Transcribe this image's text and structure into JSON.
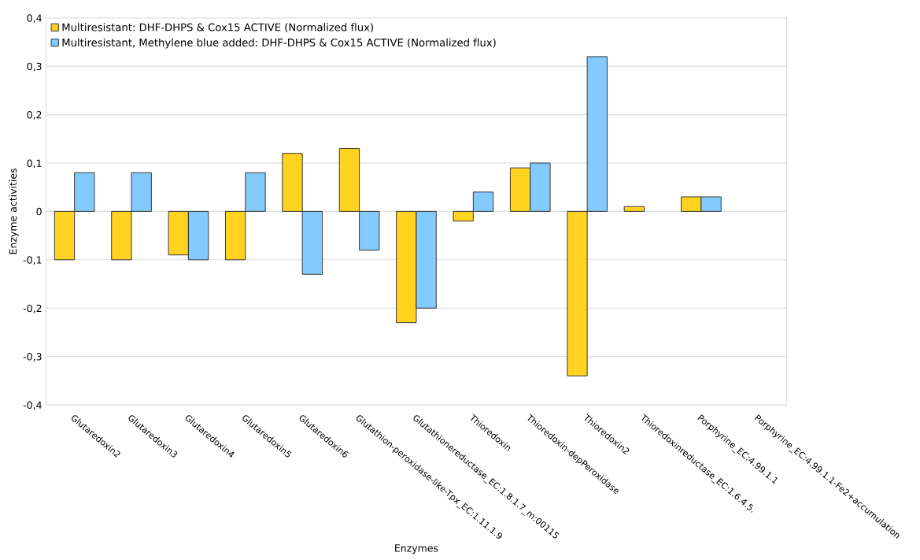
{
  "chart_data": {
    "type": "bar",
    "xlabel": "Enzymes",
    "ylabel": "Enzyme activities",
    "categories": [
      "Glutaredoxin2",
      "Glutaredoxin3",
      "Glutaredoxin4",
      "Glutaredoxin5",
      "Glutaredoxin6",
      "Glutathion-peroxidase-like-Tpx_EC:1.11.1.9",
      "Glutathionereductase_EC:1.8.1.7_m:00115",
      "Thioredoxin",
      "Thioredoxin-depPeroxidase",
      "Thioredoxin2",
      "Thioredoxinreductase_EC:1.6.4.5.",
      "Porphyrine_EC:4.99.1.1",
      "Porphyrine_EC:4.99.1.1-Fe2+accumulation"
    ],
    "series": [
      {
        "name": "Multiresistant: DHF-DHPS & Cox15 ACTIVE (Normalized flux)",
        "color": "#ffd320",
        "values": [
          -0.1,
          -0.1,
          -0.09,
          -0.1,
          0.12,
          0.13,
          -0.23,
          -0.02,
          0.09,
          -0.34,
          0.01,
          0.03,
          null
        ]
      },
      {
        "name": "Multiresistant, Methylene blue added: DHF-DHPS & Cox15 ACTIVE (Normalized flux)",
        "color": "#83caff",
        "values": [
          0.08,
          0.08,
          -0.1,
          0.08,
          -0.13,
          -0.08,
          -0.2,
          0.04,
          0.1,
          0.32,
          null,
          0.03,
          null
        ]
      }
    ],
    "ylim": [
      -0.4,
      0.4
    ],
    "yticks": [
      {
        "value": -0.4,
        "label": "-0,4"
      },
      {
        "value": -0.3,
        "label": "-0,3"
      },
      {
        "value": -0.2,
        "label": "-0,2"
      },
      {
        "value": -0.1,
        "label": "-0,1"
      },
      0,
      {
        "value": 0.1,
        "label": "0,1"
      },
      {
        "value": 0.2,
        "label": "0,2"
      },
      {
        "value": 0.3,
        "label": "0,3"
      },
      {
        "value": 0.4,
        "label": "0,4"
      }
    ],
    "grid": "y",
    "legend": "top left"
  }
}
